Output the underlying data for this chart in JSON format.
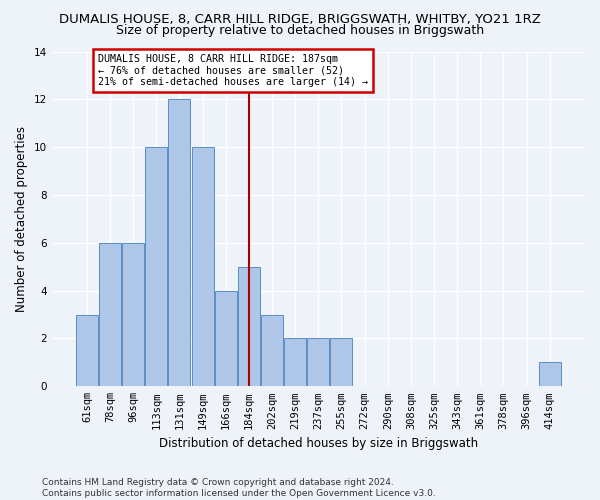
{
  "title": "DUMALIS HOUSE, 8, CARR HILL RIDGE, BRIGGSWATH, WHITBY, YO21 1RZ",
  "subtitle": "Size of property relative to detached houses in Briggswath",
  "xlabel": "Distribution of detached houses by size in Briggswath",
  "ylabel": "Number of detached properties",
  "bar_labels": [
    "61sqm",
    "78sqm",
    "96sqm",
    "113sqm",
    "131sqm",
    "149sqm",
    "166sqm",
    "184sqm",
    "202sqm",
    "219sqm",
    "237sqm",
    "255sqm",
    "272sqm",
    "290sqm",
    "308sqm",
    "325sqm",
    "343sqm",
    "361sqm",
    "378sqm",
    "396sqm",
    "414sqm"
  ],
  "bar_heights": [
    3,
    6,
    6,
    10,
    12,
    10,
    4,
    5,
    3,
    2,
    2,
    2,
    0,
    0,
    0,
    0,
    0,
    0,
    0,
    0,
    1
  ],
  "bar_color": "#aec6e8",
  "bar_edge_color": "#5b8ec7",
  "vline_index": 7,
  "vline_color": "#aa0000",
  "annotation_text": "DUMALIS HOUSE, 8 CARR HILL RIDGE: 187sqm\n← 76% of detached houses are smaller (52)\n21% of semi-detached houses are larger (14) →",
  "annotation_box_color": "#ffffff",
  "annotation_box_edge": "#cc0000",
  "ylim": [
    0,
    14
  ],
  "yticks": [
    0,
    2,
    4,
    6,
    8,
    10,
    12,
    14
  ],
  "footer_text": "Contains HM Land Registry data © Crown copyright and database right 2024.\nContains public sector information licensed under the Open Government Licence v3.0.",
  "background_color": "#eef2f9",
  "grid_color": "#ffffff",
  "title_fontsize": 9.5,
  "subtitle_fontsize": 9,
  "axis_label_fontsize": 8.5,
  "tick_fontsize": 7.5,
  "footer_fontsize": 6.5
}
